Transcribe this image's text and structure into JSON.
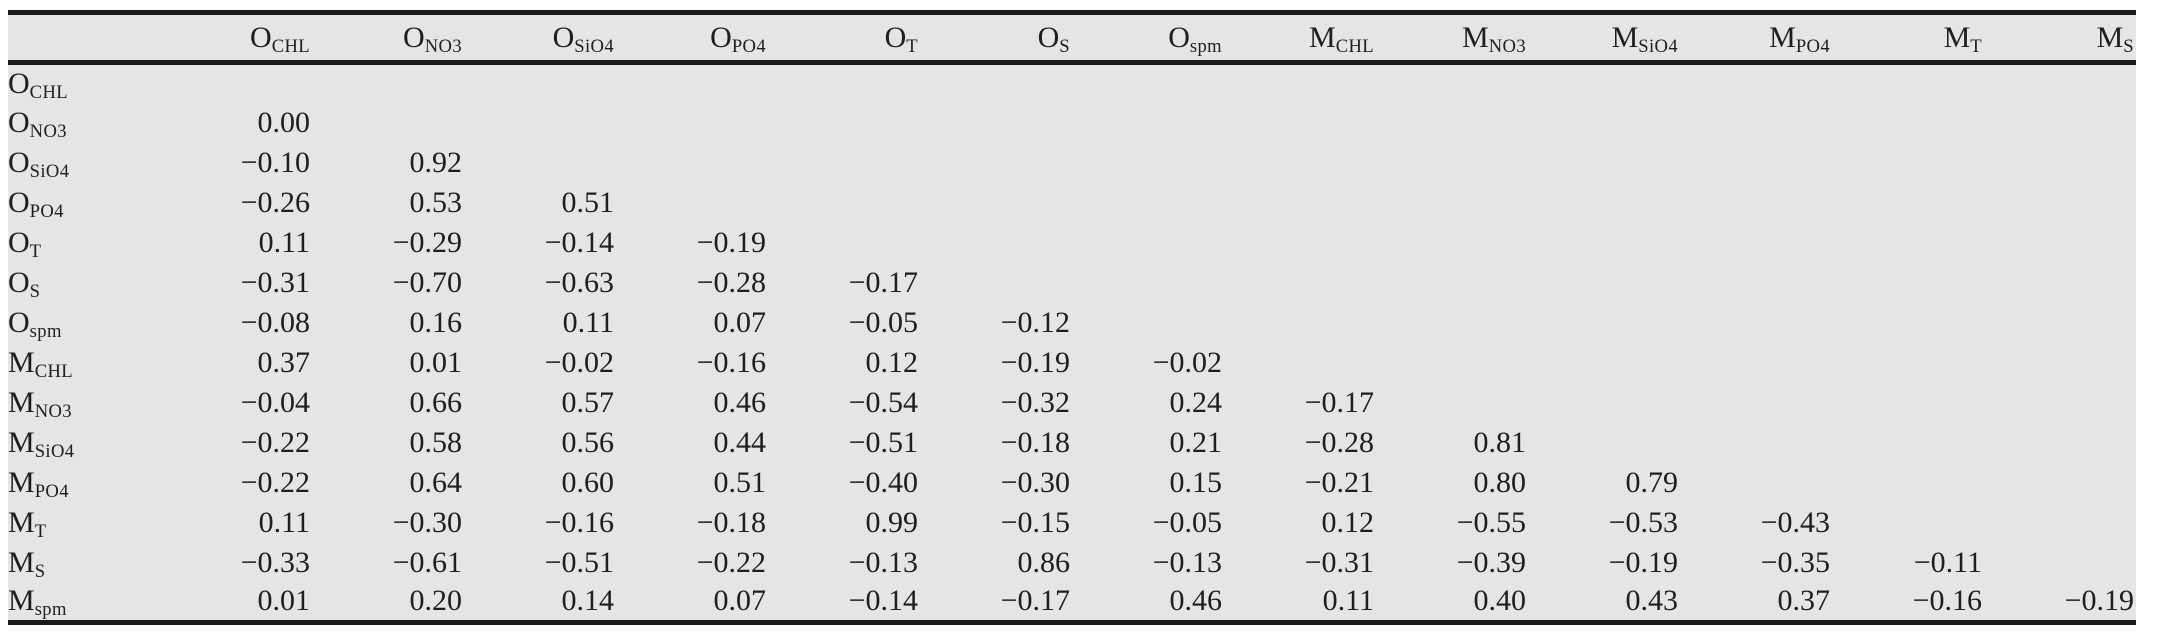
{
  "colors": {
    "table_background": "#e5e5e6",
    "rule_color": "#1b1b1b",
    "text_color": "#1e1e1e",
    "page_background": "#ffffff"
  },
  "table": {
    "corner_label": "",
    "columns": [
      {
        "base": "O",
        "sub": "CHL"
      },
      {
        "base": "O",
        "sub": "NO3"
      },
      {
        "base": "O",
        "sub": "SiO4"
      },
      {
        "base": "O",
        "sub": "PO4"
      },
      {
        "base": "O",
        "sub": "T"
      },
      {
        "base": "O",
        "sub": "S"
      },
      {
        "base": "O",
        "sub": "spm"
      },
      {
        "base": "M",
        "sub": "CHL"
      },
      {
        "base": "M",
        "sub": "NO3"
      },
      {
        "base": "M",
        "sub": "SiO4"
      },
      {
        "base": "M",
        "sub": "PO4"
      },
      {
        "base": "M",
        "sub": "T"
      },
      {
        "base": "M",
        "sub": "S"
      }
    ],
    "rows": [
      {
        "label": {
          "base": "O",
          "sub": "CHL"
        },
        "values": [
          "",
          "",
          "",
          "",
          "",
          "",
          "",
          "",
          "",
          "",
          "",
          "",
          ""
        ]
      },
      {
        "label": {
          "base": "O",
          "sub": "NO3"
        },
        "values": [
          "0.00",
          "",
          "",
          "",
          "",
          "",
          "",
          "",
          "",
          "",
          "",
          "",
          ""
        ]
      },
      {
        "label": {
          "base": "O",
          "sub": "SiO4"
        },
        "values": [
          "−0.10",
          "0.92",
          "",
          "",
          "",
          "",
          "",
          "",
          "",
          "",
          "",
          "",
          ""
        ]
      },
      {
        "label": {
          "base": "O",
          "sub": "PO4"
        },
        "values": [
          "−0.26",
          "0.53",
          "0.51",
          "",
          "",
          "",
          "",
          "",
          "",
          "",
          "",
          "",
          ""
        ]
      },
      {
        "label": {
          "base": "O",
          "sub": "T"
        },
        "values": [
          "0.11",
          "−0.29",
          "−0.14",
          "−0.19",
          "",
          "",
          "",
          "",
          "",
          "",
          "",
          "",
          ""
        ]
      },
      {
        "label": {
          "base": "O",
          "sub": "S"
        },
        "values": [
          "−0.31",
          "−0.70",
          "−0.63",
          "−0.28",
          "−0.17",
          "",
          "",
          "",
          "",
          "",
          "",
          "",
          ""
        ]
      },
      {
        "label": {
          "base": "O",
          "sub": "spm"
        },
        "values": [
          "−0.08",
          "0.16",
          "0.11",
          "0.07",
          "−0.05",
          "−0.12",
          "",
          "",
          "",
          "",
          "",
          "",
          ""
        ]
      },
      {
        "label": {
          "base": "M",
          "sub": "CHL"
        },
        "values": [
          "0.37",
          "0.01",
          "−0.02",
          "−0.16",
          "0.12",
          "−0.19",
          "−0.02",
          "",
          "",
          "",
          "",
          "",
          ""
        ]
      },
      {
        "label": {
          "base": "M",
          "sub": "NO3"
        },
        "values": [
          "−0.04",
          "0.66",
          "0.57",
          "0.46",
          "−0.54",
          "−0.32",
          "0.24",
          "−0.17",
          "",
          "",
          "",
          "",
          ""
        ]
      },
      {
        "label": {
          "base": "M",
          "sub": "SiO4"
        },
        "values": [
          "−0.22",
          "0.58",
          "0.56",
          "0.44",
          "−0.51",
          "−0.18",
          "0.21",
          "−0.28",
          "0.81",
          "",
          "",
          "",
          ""
        ]
      },
      {
        "label": {
          "base": "M",
          "sub": "PO4"
        },
        "values": [
          "−0.22",
          "0.64",
          "0.60",
          "0.51",
          "−0.40",
          "−0.30",
          "0.15",
          "−0.21",
          "0.80",
          "0.79",
          "",
          "",
          ""
        ]
      },
      {
        "label": {
          "base": "M",
          "sub": "T"
        },
        "values": [
          "0.11",
          "−0.30",
          "−0.16",
          "−0.18",
          "0.99",
          "−0.15",
          "−0.05",
          "0.12",
          "−0.55",
          "−0.53",
          "−0.43",
          "",
          ""
        ]
      },
      {
        "label": {
          "base": "M",
          "sub": "S"
        },
        "values": [
          "−0.33",
          "−0.61",
          "−0.51",
          "−0.22",
          "−0.13",
          "0.86",
          "−0.13",
          "−0.31",
          "−0.39",
          "−0.19",
          "−0.35",
          "−0.11",
          ""
        ]
      },
      {
        "label": {
          "base": "M",
          "sub": "spm"
        },
        "values": [
          "0.01",
          "0.20",
          "0.14",
          "0.07",
          "−0.14",
          "−0.17",
          "0.46",
          "0.11",
          "0.40",
          "0.43",
          "0.37",
          "−0.16",
          "−0.19"
        ]
      }
    ]
  }
}
